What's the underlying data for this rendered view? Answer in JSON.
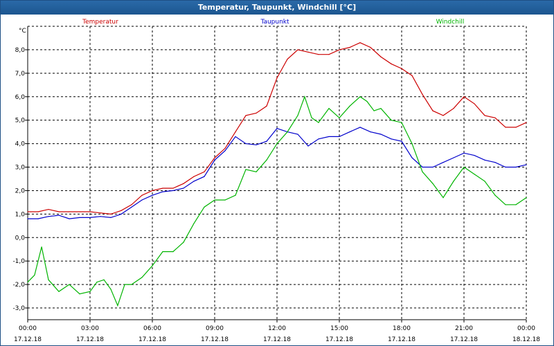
{
  "window": {
    "title": "Temperatur, Taupunkt, Windchill [°C]"
  },
  "colors": {
    "temperature": "#cc0000",
    "dewpoint": "#0000cc",
    "windchill": "#00b400",
    "titlebar": "#1e5a96",
    "grid": "#000000"
  },
  "chart_data": {
    "type": "line",
    "title": "Temperatur, Taupunkt, Windchill [°C]",
    "ylabel": "°C",
    "xlabel": "",
    "ylim": [
      -3.5,
      9.0
    ],
    "xlim_hours": [
      0,
      24
    ],
    "y_ticks": [
      "8,0",
      "7,0",
      "6,0",
      "5,0",
      "4,0",
      "3,0",
      "2,0",
      "1,0",
      "0,0",
      "-1,0",
      "-2,0",
      "-3,0"
    ],
    "y_tick_values": [
      8,
      7,
      6,
      5,
      4,
      3,
      2,
      1,
      0,
      -1,
      -2,
      -3
    ],
    "x_ticks": [
      {
        "time": "00:00",
        "date": "17.12.18"
      },
      {
        "time": "03:00",
        "date": "17.12.18"
      },
      {
        "time": "06:00",
        "date": "17.12.18"
      },
      {
        "time": "09:00",
        "date": "17.12.18"
      },
      {
        "time": "12:00",
        "date": "17.12.18"
      },
      {
        "time": "15:00",
        "date": "17.12.18"
      },
      {
        "time": "18:00",
        "date": "17.12.18"
      },
      {
        "time": "21:00",
        "date": "17.12.18"
      },
      {
        "time": "00:00",
        "date": "18.12.18"
      }
    ],
    "grid": true,
    "series": [
      {
        "name": "Temperatur",
        "x": [
          0,
          0.5,
          1,
          1.5,
          2,
          2.5,
          3,
          3.5,
          4,
          4.5,
          5,
          5.5,
          6,
          6.5,
          7,
          7.5,
          8,
          8.5,
          9,
          9.5,
          10,
          10.5,
          11,
          11.5,
          12,
          12.5,
          13,
          13.5,
          14,
          14.5,
          15,
          15.5,
          16,
          16.5,
          17,
          17.5,
          18,
          18.5,
          19,
          19.5,
          20,
          20.5,
          21,
          21.5,
          22,
          22.5,
          23,
          23.5,
          24
        ],
        "values": [
          1.1,
          1.1,
          1.2,
          1.1,
          1.1,
          1.1,
          1.1,
          1.05,
          1.0,
          1.15,
          1.4,
          1.8,
          2.0,
          2.1,
          2.1,
          2.3,
          2.6,
          2.8,
          3.4,
          3.8,
          4.5,
          5.2,
          5.3,
          5.6,
          6.8,
          7.6,
          8.0,
          7.9,
          7.8,
          7.8,
          8.0,
          8.1,
          8.3,
          8.1,
          7.7,
          7.4,
          7.2,
          6.9,
          6.1,
          5.4,
          5.2,
          5.5,
          6.0,
          5.7,
          5.2,
          5.1,
          4.7,
          4.7,
          4.9
        ]
      },
      {
        "name": "Taupunkt",
        "x": [
          0,
          0.5,
          1,
          1.5,
          2,
          2.5,
          3,
          3.5,
          4,
          4.5,
          5,
          5.5,
          6,
          6.5,
          7,
          7.5,
          8,
          8.5,
          9,
          9.5,
          10,
          10.5,
          11,
          11.5,
          12,
          12.5,
          13,
          13.5,
          14,
          14.5,
          15,
          15.5,
          16,
          16.5,
          17,
          17.5,
          18,
          18.5,
          19,
          19.5,
          20,
          20.5,
          21,
          21.5,
          22,
          22.5,
          23,
          23.5,
          24
        ],
        "values": [
          0.8,
          0.8,
          0.9,
          0.95,
          0.8,
          0.85,
          0.85,
          0.9,
          0.85,
          1.0,
          1.3,
          1.6,
          1.8,
          1.95,
          2.0,
          2.1,
          2.4,
          2.6,
          3.3,
          3.7,
          4.3,
          4.0,
          3.95,
          4.1,
          4.65,
          4.5,
          4.4,
          3.9,
          4.2,
          4.3,
          4.3,
          4.5,
          4.7,
          4.5,
          4.4,
          4.2,
          4.1,
          3.4,
          3.0,
          3.0,
          3.2,
          3.4,
          3.6,
          3.5,
          3.3,
          3.2,
          3.0,
          3.0,
          3.1
        ]
      },
      {
        "name": "Windchill",
        "x": [
          0,
          0.33,
          0.67,
          1,
          1.5,
          2,
          2.5,
          3,
          3.33,
          3.67,
          4,
          4.33,
          4.67,
          5,
          5.5,
          6,
          6.5,
          7,
          7.5,
          8,
          8.5,
          9,
          9.5,
          10,
          10.5,
          11,
          11.5,
          12,
          12.5,
          13,
          13.33,
          13.67,
          14,
          14.5,
          15,
          15.5,
          16,
          16.33,
          16.67,
          17,
          17.5,
          18,
          18.5,
          19,
          19.5,
          20,
          20.5,
          21,
          21.5,
          22,
          22.5,
          23,
          23.5,
          24
        ],
        "values": [
          -1.9,
          -1.6,
          -0.4,
          -1.8,
          -2.3,
          -2.0,
          -2.4,
          -2.3,
          -1.9,
          -1.8,
          -2.2,
          -2.9,
          -2.0,
          -2.0,
          -1.7,
          -1.2,
          -0.6,
          -0.6,
          -0.2,
          0.6,
          1.3,
          1.6,
          1.6,
          1.8,
          2.9,
          2.8,
          3.3,
          4.0,
          4.5,
          5.2,
          6.0,
          5.1,
          4.9,
          5.5,
          5.1,
          5.6,
          6.0,
          5.8,
          5.4,
          5.5,
          5.0,
          4.9,
          4.0,
          2.8,
          2.3,
          1.7,
          2.4,
          3.0,
          2.7,
          2.4,
          1.8,
          1.4,
          1.4,
          1.7
        ]
      }
    ],
    "legend": [
      "Temperatur",
      "Taupunkt",
      "Windchill"
    ],
    "legend_position": "top"
  }
}
